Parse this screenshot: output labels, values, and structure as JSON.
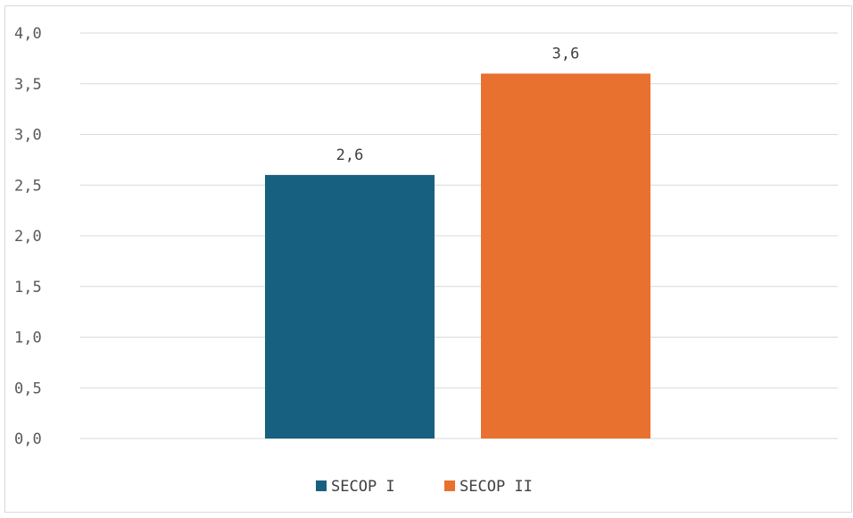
{
  "chart_data": {
    "type": "bar",
    "series": [
      {
        "name": "SECOP I",
        "value": 2.6,
        "label": "2,6",
        "color": "#17607f"
      },
      {
        "name": "SECOP II",
        "value": 3.6,
        "label": "3,6",
        "color": "#e87130"
      }
    ],
    "y_ticks": [
      {
        "value": 0.0,
        "label": "0,0"
      },
      {
        "value": 0.5,
        "label": "0,5"
      },
      {
        "value": 1.0,
        "label": "1,0"
      },
      {
        "value": 1.5,
        "label": "1,5"
      },
      {
        "value": 2.0,
        "label": "2,0"
      },
      {
        "value": 2.5,
        "label": "2,5"
      },
      {
        "value": 3.0,
        "label": "3,0"
      },
      {
        "value": 3.5,
        "label": "3,5"
      },
      {
        "value": 4.0,
        "label": "4,0"
      }
    ],
    "ylim": [
      0,
      4
    ],
    "grid": true,
    "legend_position": "bottom",
    "title": "",
    "xlabel": "",
    "ylabel": ""
  }
}
